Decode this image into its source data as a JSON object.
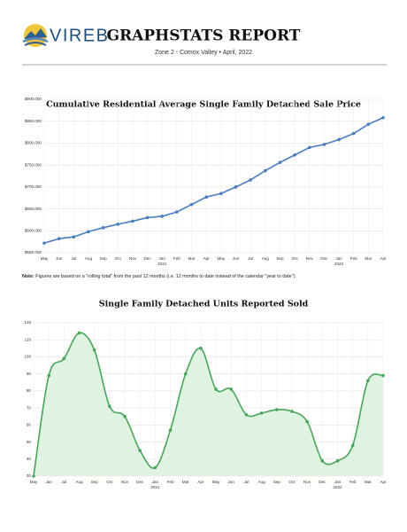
{
  "header": {
    "brand": "VIREB",
    "title": "GRAPHSTATS REPORT",
    "subtitle": "Zone 2 - Comox Valley  •  April, 2022"
  },
  "note": {
    "label": "Note:",
    "text": "Figures are based on a \"rolling total\" from the past 12 months (i.e. 12 months to date instead of the calendar \"year to date\")."
  },
  "chart_data": [
    {
      "type": "line",
      "title": "Cumulative Residential Average Single Family Detached Sale Price",
      "categories": [
        "May",
        "Jun",
        "Jul",
        "Aug",
        "Sep",
        "Oct",
        "Nov",
        "Dec",
        "Jan",
        "Feb",
        "Mar",
        "Apr",
        "May",
        "Jun",
        "Jul",
        "Aug",
        "Sep",
        "Oct",
        "Nov",
        "Dec",
        "Jan",
        "Feb",
        "Mar",
        "Apr"
      ],
      "category_years": [
        null,
        null,
        null,
        null,
        null,
        null,
        null,
        null,
        "2021",
        null,
        null,
        null,
        null,
        null,
        null,
        null,
        null,
        null,
        null,
        null,
        "2022",
        null,
        null,
        null
      ],
      "values": [
        572000,
        582000,
        586000,
        598000,
        607000,
        615000,
        622000,
        630000,
        633000,
        643000,
        660000,
        677000,
        685000,
        700000,
        716000,
        737000,
        756000,
        773000,
        790000,
        797000,
        808000,
        822000,
        843000,
        858000
      ],
      "color": "#4a7cc0",
      "smooth": false,
      "grid": true,
      "ylim": [
        550000,
        900000
      ],
      "yticks": [
        {
          "value": 550000,
          "label": "$550,000"
        },
        {
          "value": 600000,
          "label": "$600,000"
        },
        {
          "value": 650000,
          "label": "$650,000"
        },
        {
          "value": 700000,
          "label": "$700,000"
        },
        {
          "value": 750000,
          "label": "$750,000"
        },
        {
          "value": 800000,
          "label": "$800,000"
        },
        {
          "value": 850000,
          "label": "$850,000"
        },
        {
          "value": 900000,
          "label": "$900,000"
        }
      ]
    },
    {
      "type": "area",
      "title": "Single Family Detached Units Reported Sold",
      "categories": [
        "May",
        "Jun",
        "Jul",
        "Aug",
        "Sep",
        "Oct",
        "Nov",
        "Dec",
        "Jan",
        "Feb",
        "Mar",
        "Apr",
        "May",
        "Jun",
        "Jul",
        "Aug",
        "Sep",
        "Oct",
        "Nov",
        "Dec",
        "Jan",
        "Feb",
        "Mar",
        "Apr"
      ],
      "category_years": [
        null,
        null,
        null,
        null,
        null,
        null,
        null,
        null,
        "2021",
        null,
        null,
        null,
        null,
        null,
        null,
        null,
        null,
        null,
        null,
        null,
        "2022",
        null,
        null,
        null
      ],
      "values": [
        30,
        89,
        99,
        114,
        104,
        71,
        65,
        45,
        35,
        57,
        90,
        105,
        81,
        81,
        66,
        67,
        69,
        68,
        62,
        39,
        39,
        48,
        86,
        89
      ],
      "color": "#4aa55a",
      "fill_color": "#dff3e2",
      "smooth": true,
      "grid": true,
      "ylim": [
        30,
        120
      ],
      "yticks": [
        30,
        40,
        50,
        60,
        70,
        80,
        90,
        100,
        110,
        120
      ]
    }
  ]
}
